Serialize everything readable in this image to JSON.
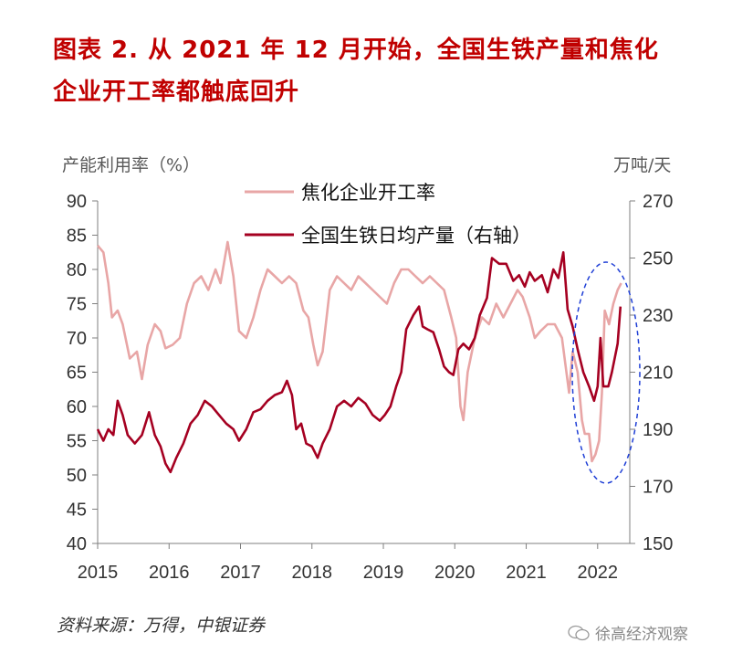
{
  "title": {
    "line1": "图表 2.  从 2021 年 12 月开始，全国生铁产量和焦化",
    "line2": "企业开工率都触底回升"
  },
  "source": "资料来源：万得，中银证券",
  "watermark": "徐高经济观察",
  "colors": {
    "coke": "#e8a6a6",
    "iron": "#a50021",
    "ellipse": "#1f3fd6",
    "axis": "#7f7f7f"
  },
  "chart_data": {
    "type": "line",
    "x_ticks": [
      "2015",
      "2016",
      "2017",
      "2018",
      "2019",
      "2020",
      "2021",
      "2022"
    ],
    "x_range": [
      2015.0,
      2022.45
    ],
    "left_axis": {
      "unit": "产能利用率（%）",
      "ticks": [
        "90",
        "85",
        "80",
        "75",
        "70",
        "65",
        "60",
        "55",
        "50",
        "45",
        "40"
      ],
      "range": [
        40,
        90
      ]
    },
    "right_axis": {
      "unit": "万吨/天",
      "ticks": [
        "270",
        "250",
        "230",
        "210",
        "190",
        "170",
        "150"
      ],
      "range": [
        150,
        270
      ]
    },
    "legend_position": "top-center",
    "series": [
      {
        "name": "焦化企业开工率",
        "axis": "left",
        "color": "#e8a6a6",
        "points": [
          [
            2015.0,
            83.5
          ],
          [
            2015.08,
            82.5
          ],
          [
            2015.15,
            78
          ],
          [
            2015.2,
            73
          ],
          [
            2015.28,
            74
          ],
          [
            2015.35,
            72
          ],
          [
            2015.45,
            67
          ],
          [
            2015.55,
            68
          ],
          [
            2015.62,
            64
          ],
          [
            2015.7,
            69
          ],
          [
            2015.8,
            72
          ],
          [
            2015.88,
            71
          ],
          [
            2015.95,
            68.5
          ],
          [
            2016.05,
            69
          ],
          [
            2016.15,
            70
          ],
          [
            2016.25,
            75
          ],
          [
            2016.35,
            78
          ],
          [
            2016.45,
            79
          ],
          [
            2016.55,
            77
          ],
          [
            2016.65,
            80
          ],
          [
            2016.72,
            78
          ],
          [
            2016.82,
            84
          ],
          [
            2016.9,
            79
          ],
          [
            2016.98,
            71
          ],
          [
            2017.08,
            70
          ],
          [
            2017.18,
            73
          ],
          [
            2017.28,
            77
          ],
          [
            2017.38,
            80
          ],
          [
            2017.48,
            79
          ],
          [
            2017.58,
            78
          ],
          [
            2017.68,
            79
          ],
          [
            2017.78,
            78
          ],
          [
            2017.88,
            74
          ],
          [
            2017.95,
            73
          ],
          [
            2018.02,
            69
          ],
          [
            2018.08,
            66
          ],
          [
            2018.15,
            68
          ],
          [
            2018.25,
            77
          ],
          [
            2018.35,
            79
          ],
          [
            2018.45,
            78
          ],
          [
            2018.55,
            77
          ],
          [
            2018.65,
            79
          ],
          [
            2018.75,
            78
          ],
          [
            2018.85,
            77
          ],
          [
            2018.95,
            76
          ],
          [
            2019.05,
            75
          ],
          [
            2019.15,
            78
          ],
          [
            2019.25,
            80
          ],
          [
            2019.35,
            80
          ],
          [
            2019.45,
            79
          ],
          [
            2019.55,
            78
          ],
          [
            2019.65,
            79
          ],
          [
            2019.75,
            78
          ],
          [
            2019.85,
            77
          ],
          [
            2019.95,
            73
          ],
          [
            2020.02,
            70
          ],
          [
            2020.08,
            60
          ],
          [
            2020.12,
            58
          ],
          [
            2020.18,
            65
          ],
          [
            2020.28,
            70
          ],
          [
            2020.38,
            73
          ],
          [
            2020.48,
            72
          ],
          [
            2020.58,
            75
          ],
          [
            2020.68,
            73
          ],
          [
            2020.78,
            75
          ],
          [
            2020.88,
            77
          ],
          [
            2020.95,
            76
          ],
          [
            2021.05,
            73
          ],
          [
            2021.12,
            70
          ],
          [
            2021.2,
            71
          ],
          [
            2021.3,
            72
          ],
          [
            2021.4,
            72
          ],
          [
            2021.5,
            70
          ],
          [
            2021.55,
            66
          ],
          [
            2021.6,
            62
          ],
          [
            2021.65,
            68
          ],
          [
            2021.72,
            65
          ],
          [
            2021.78,
            58
          ],
          [
            2021.82,
            56
          ],
          [
            2021.88,
            56
          ],
          [
            2021.92,
            52
          ],
          [
            2021.97,
            53
          ],
          [
            2022.02,
            55
          ],
          [
            2022.06,
            62
          ],
          [
            2022.1,
            74
          ],
          [
            2022.16,
            72
          ],
          [
            2022.22,
            75
          ],
          [
            2022.28,
            77
          ],
          [
            2022.33,
            78
          ]
        ]
      },
      {
        "name": "全国生铁日均产量（右轴）",
        "axis": "right",
        "color": "#a50021",
        "points": [
          [
            2015.0,
            190
          ],
          [
            2015.08,
            186
          ],
          [
            2015.15,
            190
          ],
          [
            2015.22,
            188
          ],
          [
            2015.28,
            200
          ],
          [
            2015.35,
            195
          ],
          [
            2015.42,
            188
          ],
          [
            2015.52,
            185
          ],
          [
            2015.62,
            188
          ],
          [
            2015.72,
            196
          ],
          [
            2015.8,
            188
          ],
          [
            2015.88,
            184
          ],
          [
            2015.95,
            178
          ],
          [
            2016.02,
            175
          ],
          [
            2016.1,
            180
          ],
          [
            2016.2,
            185
          ],
          [
            2016.3,
            192
          ],
          [
            2016.4,
            195
          ],
          [
            2016.5,
            200
          ],
          [
            2016.6,
            198
          ],
          [
            2016.7,
            195
          ],
          [
            2016.8,
            192
          ],
          [
            2016.9,
            190
          ],
          [
            2016.98,
            186
          ],
          [
            2017.08,
            190
          ],
          [
            2017.18,
            196
          ],
          [
            2017.28,
            197
          ],
          [
            2017.38,
            200
          ],
          [
            2017.48,
            202
          ],
          [
            2017.58,
            203
          ],
          [
            2017.65,
            207
          ],
          [
            2017.72,
            202
          ],
          [
            2017.78,
            190
          ],
          [
            2017.85,
            192
          ],
          [
            2017.92,
            185
          ],
          [
            2018.0,
            184
          ],
          [
            2018.08,
            180
          ],
          [
            2018.15,
            185
          ],
          [
            2018.25,
            190
          ],
          [
            2018.35,
            198
          ],
          [
            2018.45,
            200
          ],
          [
            2018.55,
            198
          ],
          [
            2018.65,
            201
          ],
          [
            2018.75,
            199
          ],
          [
            2018.85,
            195
          ],
          [
            2018.95,
            193
          ],
          [
            2019.02,
            195
          ],
          [
            2019.1,
            198
          ],
          [
            2019.18,
            205
          ],
          [
            2019.25,
            210
          ],
          [
            2019.32,
            225
          ],
          [
            2019.42,
            230
          ],
          [
            2019.5,
            233
          ],
          [
            2019.55,
            226
          ],
          [
            2019.62,
            225
          ],
          [
            2019.7,
            224
          ],
          [
            2019.78,
            218
          ],
          [
            2019.85,
            212
          ],
          [
            2019.92,
            210
          ],
          [
            2019.98,
            209
          ],
          [
            2020.05,
            218
          ],
          [
            2020.12,
            220
          ],
          [
            2020.2,
            218
          ],
          [
            2020.28,
            222
          ],
          [
            2020.35,
            230
          ],
          [
            2020.45,
            236
          ],
          [
            2020.52,
            250
          ],
          [
            2020.62,
            248
          ],
          [
            2020.72,
            248
          ],
          [
            2020.82,
            242
          ],
          [
            2020.9,
            244
          ],
          [
            2020.98,
            240
          ],
          [
            2021.05,
            245
          ],
          [
            2021.12,
            242
          ],
          [
            2021.22,
            244
          ],
          [
            2021.3,
            238
          ],
          [
            2021.38,
            246
          ],
          [
            2021.45,
            243
          ],
          [
            2021.52,
            252
          ],
          [
            2021.58,
            232
          ],
          [
            2021.65,
            226
          ],
          [
            2021.72,
            218
          ],
          [
            2021.8,
            210
          ],
          [
            2021.88,
            205
          ],
          [
            2021.95,
            200
          ],
          [
            2022.0,
            205
          ],
          [
            2022.04,
            222
          ],
          [
            2022.08,
            205
          ],
          [
            2022.15,
            205
          ],
          [
            2022.2,
            210
          ],
          [
            2022.28,
            220
          ],
          [
            2022.32,
            233
          ]
        ]
      }
    ],
    "annotation": "dashed ellipse around late 2021 – early 2022"
  }
}
